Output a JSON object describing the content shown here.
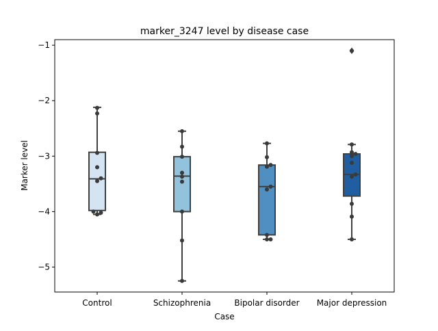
{
  "chart_data": {
    "type": "box",
    "title": "marker_3247 level by disease case",
    "xlabel": "Case",
    "ylabel": "Marker level",
    "ylim": [
      -5.45,
      -0.9
    ],
    "yticks": [
      -5,
      -4,
      -3,
      -2,
      -1
    ],
    "ytick_labels": [
      "−5",
      "−4",
      "−3",
      "−2",
      "−1"
    ],
    "grid": false,
    "categories": [
      "Control",
      "Schizophrenia",
      "Bipolar disorder",
      "Major depression"
    ],
    "colors": [
      "#d4e4f3",
      "#93c2dd",
      "#4f8fc1",
      "#1f5fa1"
    ],
    "boxes": [
      {
        "whislo": -4.05,
        "q1": -3.98,
        "med": -3.41,
        "q3": -2.93,
        "whishi": -2.12,
        "fliers": []
      },
      {
        "whislo": -5.25,
        "q1": -4.0,
        "med": -3.36,
        "q3": -3.01,
        "whishi": -2.55,
        "fliers": []
      },
      {
        "whislo": -4.5,
        "q1": -4.42,
        "med": -3.55,
        "q3": -3.16,
        "whishi": -2.77,
        "fliers": []
      },
      {
        "whislo": -4.5,
        "q1": -3.72,
        "med": -3.33,
        "q3": -2.96,
        "whishi": -2.79,
        "fliers": [
          -1.1
        ]
      }
    ],
    "points": [
      [
        -2.13,
        -2.23,
        -2.94,
        -3.2,
        -3.4,
        -3.45,
        -4.0,
        -4.02,
        -4.05
      ],
      [
        -2.55,
        -2.83,
        -3.01,
        -3.3,
        -3.37,
        -3.46,
        -4.0,
        -4.52,
        -5.25
      ],
      [
        -2.77,
        -3.02,
        -3.16,
        -3.19,
        -3.55,
        -3.6,
        -4.42,
        -4.5,
        -4.5
      ],
      [
        -1.1,
        -2.79,
        -2.93,
        -2.96,
        -3.0,
        -3.12,
        -3.33,
        -3.37,
        -3.86,
        -4.09,
        -4.5
      ]
    ]
  }
}
